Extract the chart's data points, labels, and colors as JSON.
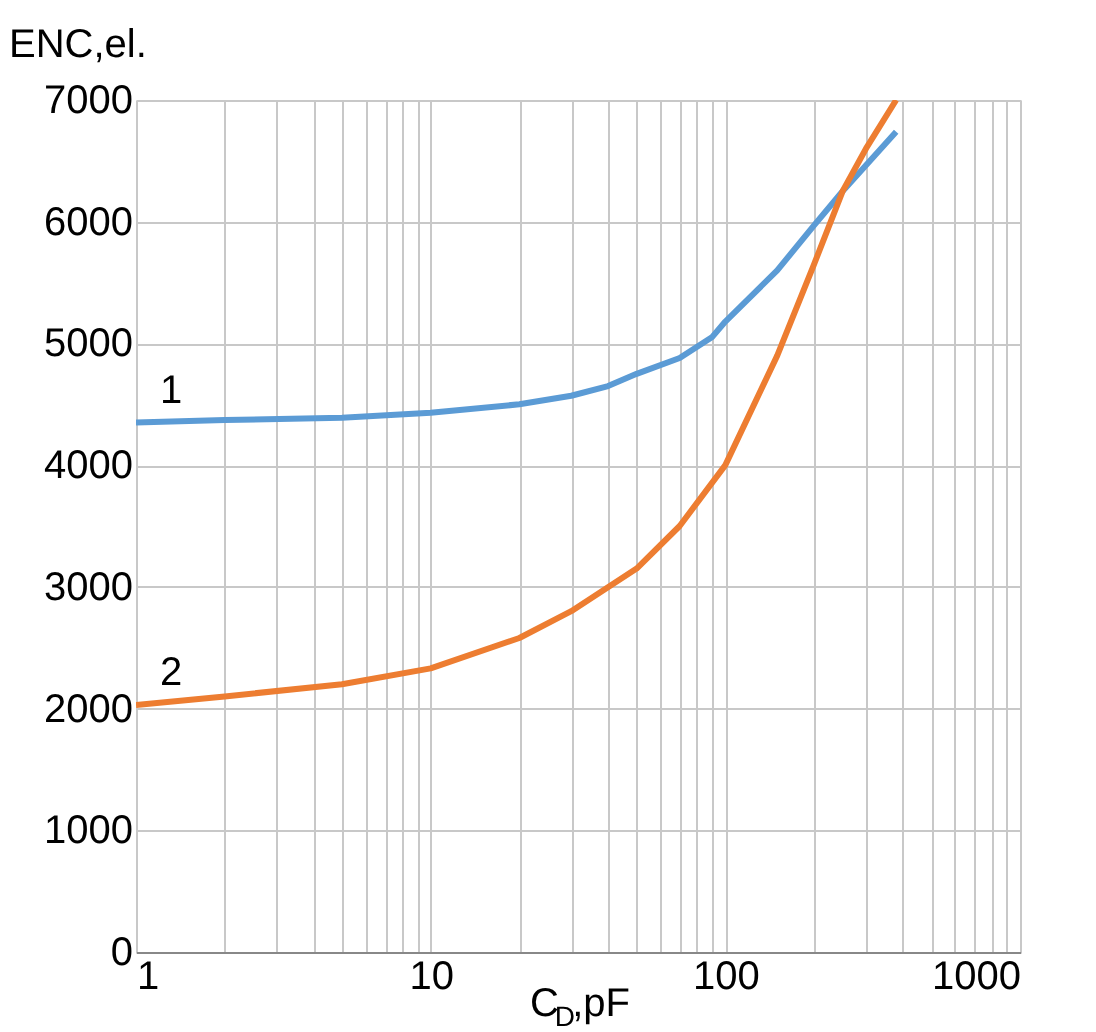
{
  "chart_data": {
    "type": "line",
    "xlabel": "C$_{D}$,pF",
    "ylabel": "ENC,el.",
    "log": "x",
    "grid": true,
    "legend": false,
    "marker": "none",
    "line_style": "solid",
    "xlim": [
      1,
      1000
    ],
    "xticks": [
      1,
      10,
      100,
      {
        "value": 1000,
        "label": "1000"
      }
    ],
    "ylim": [
      0,
      7000
    ],
    "yticks": [
      0,
      1000,
      2000,
      3000,
      4000,
      5000,
      6000,
      7000
    ],
    "series": [
      {
        "name": "1",
        "color": "#5b9bd5",
        "x": [
          1,
          2,
          5,
          10,
          20,
          30,
          40,
          50,
          70,
          90,
          100,
          150,
          200,
          250,
          380
        ],
        "values": [
          4350,
          4370,
          4390,
          4430,
          4500,
          4570,
          4650,
          4750,
          4880,
          5050,
          5180,
          5600,
          5970,
          6250,
          6740
        ]
      },
      {
        "name": "2",
        "color": "#ed7d31",
        "x": [
          1,
          2,
          5,
          10,
          20,
          30,
          50,
          70,
          100,
          150,
          200,
          250,
          300,
          380
        ],
        "values": [
          2030,
          2100,
          2200,
          2330,
          2580,
          2800,
          3150,
          3500,
          4000,
          4900,
          5650,
          6250,
          6600,
          7000
        ]
      }
    ]
  }
}
